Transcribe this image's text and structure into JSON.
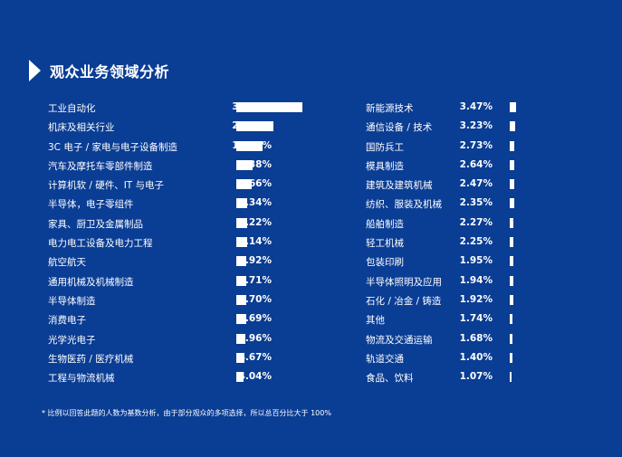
{
  "chart_data": {
    "type": "bar",
    "title": "观众业务领域分析",
    "footnote": "* 比例以回答此题的人数为基数分析，由于部分观众的多项选择，所以总百分比大于 100%",
    "left": [
      {
        "label": "工业自动化",
        "value": 37.99,
        "display": "37.99%"
      },
      {
        "label": "机床及相关行业",
        "value": 21.39,
        "display": "21.39%"
      },
      {
        "label": "3C 电子 / 家电与电子设备制造",
        "value": 14.83,
        "display": "14.83%"
      },
      {
        "label": "汽车及摩托车零部件制造",
        "value": 9.38,
        "display": "9.38%"
      },
      {
        "label": "计算机软 / 硬件、IT 与电子",
        "value": 8.66,
        "display": "8.66%"
      },
      {
        "label": "半导体，电子零组件",
        "value": 6.34,
        "display": "6.34%"
      },
      {
        "label": "家具、厨卫及金属制品",
        "value": 6.22,
        "display": "6.22%"
      },
      {
        "label": "电力电工设备及电力工程",
        "value": 6.14,
        "display": "6.14%"
      },
      {
        "label": "航空航天",
        "value": 5.92,
        "display": "5.92%"
      },
      {
        "label": "通用机械及机械制造",
        "value": 5.71,
        "display": "5.71%"
      },
      {
        "label": "半导体制造",
        "value": 5.7,
        "display": "5.70%"
      },
      {
        "label": "消费电子",
        "value": 5.69,
        "display": "5.69%"
      },
      {
        "label": "光学光电子",
        "value": 4.96,
        "display": "4.96%"
      },
      {
        "label": "生物医药 / 医疗机械",
        "value": 4.67,
        "display": "4.67%"
      },
      {
        "label": "工程与物流机械",
        "value": 4.04,
        "display": "4.04%"
      }
    ],
    "right": [
      {
        "label": "新能源技术",
        "value": 3.47,
        "display": "3.47%"
      },
      {
        "label": "通信设备 / 技术",
        "value": 3.23,
        "display": "3.23%"
      },
      {
        "label": "国防兵工",
        "value": 2.73,
        "display": "2.73%"
      },
      {
        "label": "模具制造",
        "value": 2.64,
        "display": "2.64%"
      },
      {
        "label": "建筑及建筑机械",
        "value": 2.47,
        "display": "2.47%"
      },
      {
        "label": "纺织、服装及机械",
        "value": 2.35,
        "display": "2.35%"
      },
      {
        "label": "船舶制造",
        "value": 2.27,
        "display": "2.27%"
      },
      {
        "label": "轻工机械",
        "value": 2.25,
        "display": "2.25%"
      },
      {
        "label": "包装印刷",
        "value": 1.95,
        "display": "1.95%"
      },
      {
        "label": "半导体照明及应用",
        "value": 1.94,
        "display": "1.94%"
      },
      {
        "label": "石化 / 冶金 / 铸造",
        "value": 1.92,
        "display": "1.92%"
      },
      {
        "label": "其他",
        "value": 1.74,
        "display": "1.74%"
      },
      {
        "label": "物流及交通运输",
        "value": 1.68,
        "display": "1.68%"
      },
      {
        "label": "轨道交通",
        "value": 1.4,
        "display": "1.40%"
      },
      {
        "label": "食品、饮料",
        "value": 1.07,
        "display": "1.07%"
      }
    ]
  }
}
